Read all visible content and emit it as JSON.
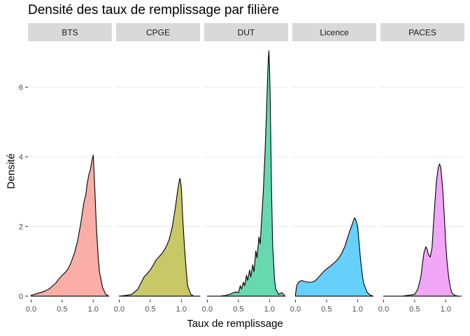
{
  "chart_data": {
    "type": "area",
    "title": "Densité des taux de remplissage par filière",
    "xlabel": "Taux de remplissage",
    "ylabel": "Densité",
    "xlim": [
      -0.05,
      1.3
    ],
    "ylim": [
      -0.1,
      7.3
    ],
    "x_ticks": [
      0.0,
      0.5,
      1.0
    ],
    "x_tick_labels": [
      "0.0",
      "0.5",
      "1.0"
    ],
    "y_ticks": [
      0,
      2,
      4,
      6
    ],
    "y_tick_labels": [
      "0",
      "2",
      "4",
      "6"
    ],
    "grid": true,
    "legend": "none",
    "facets": [
      "BTS",
      "CPGE",
      "DUT",
      "Licence",
      "PACES"
    ],
    "series": [
      {
        "name": "BTS",
        "color": "#F8766D",
        "x": [
          0.0,
          0.05,
          0.1,
          0.15,
          0.2,
          0.25,
          0.3,
          0.35,
          0.4,
          0.45,
          0.5,
          0.55,
          0.6,
          0.65,
          0.7,
          0.75,
          0.8,
          0.85,
          0.88,
          0.9,
          0.93,
          0.95,
          0.98,
          1.0,
          1.02,
          1.05,
          1.08,
          1.1,
          1.15,
          1.2,
          1.25
        ],
        "values": [
          0.02,
          0.05,
          0.08,
          0.1,
          0.13,
          0.17,
          0.22,
          0.3,
          0.38,
          0.5,
          0.6,
          0.68,
          0.8,
          1.0,
          1.25,
          1.6,
          2.1,
          2.7,
          2.9,
          3.2,
          3.5,
          3.6,
          3.9,
          4.05,
          3.3,
          2.0,
          1.1,
          0.7,
          0.25,
          0.05,
          0.0
        ]
      },
      {
        "name": "CPGE",
        "color": "#A3A500",
        "x": [
          0.0,
          0.1,
          0.2,
          0.3,
          0.35,
          0.4,
          0.45,
          0.5,
          0.55,
          0.6,
          0.65,
          0.7,
          0.75,
          0.8,
          0.85,
          0.9,
          0.93,
          0.95,
          0.97,
          0.98,
          1.0,
          1.02,
          1.05,
          1.08,
          1.1,
          1.15,
          1.2,
          1.3
        ],
        "values": [
          0.0,
          0.02,
          0.05,
          0.2,
          0.38,
          0.55,
          0.65,
          0.75,
          0.9,
          1.05,
          1.15,
          1.25,
          1.4,
          1.6,
          1.95,
          2.5,
          2.9,
          3.15,
          3.35,
          3.38,
          3.1,
          2.3,
          1.4,
          0.7,
          0.3,
          0.05,
          0.0,
          0.0
        ]
      },
      {
        "name": "DUT",
        "color": "#00BF7D",
        "x": [
          0.0,
          0.2,
          0.3,
          0.35,
          0.4,
          0.45,
          0.5,
          0.53,
          0.55,
          0.58,
          0.6,
          0.63,
          0.65,
          0.68,
          0.7,
          0.73,
          0.75,
          0.78,
          0.8,
          0.83,
          0.85,
          0.88,
          0.9,
          0.93,
          0.95,
          0.97,
          0.98,
          0.99,
          1.0,
          1.01,
          1.02,
          1.03,
          1.05,
          1.08,
          1.1,
          1.15,
          1.2,
          1.25
        ],
        "values": [
          0.0,
          0.0,
          0.02,
          0.05,
          0.08,
          0.12,
          0.1,
          0.3,
          0.2,
          0.4,
          0.3,
          0.6,
          0.45,
          0.75,
          0.55,
          0.9,
          0.7,
          1.3,
          1.1,
          1.7,
          1.5,
          2.4,
          3.0,
          4.2,
          5.2,
          6.3,
          6.8,
          7.05,
          6.6,
          5.8,
          4.6,
          3.3,
          1.5,
          0.5,
          0.2,
          0.05,
          0.1,
          0.0
        ]
      },
      {
        "name": "Licence",
        "color": "#00B0F6",
        "x": [
          0.0,
          0.02,
          0.05,
          0.1,
          0.15,
          0.2,
          0.25,
          0.3,
          0.35,
          0.4,
          0.45,
          0.5,
          0.55,
          0.6,
          0.65,
          0.7,
          0.75,
          0.8,
          0.85,
          0.9,
          0.93,
          0.95,
          0.97,
          1.0,
          1.02,
          1.05,
          1.08,
          1.1,
          1.15,
          1.2,
          1.25
        ],
        "values": [
          0.05,
          0.3,
          0.4,
          0.45,
          0.42,
          0.4,
          0.4,
          0.42,
          0.5,
          0.6,
          0.7,
          0.78,
          0.85,
          0.92,
          1.0,
          1.1,
          1.25,
          1.45,
          1.75,
          2.0,
          2.15,
          2.25,
          2.2,
          2.0,
          1.6,
          1.0,
          0.55,
          0.35,
          0.12,
          0.03,
          0.0
        ]
      },
      {
        "name": "PACES",
        "color": "#E76BF3",
        "x": [
          0.0,
          0.3,
          0.5,
          0.55,
          0.6,
          0.63,
          0.65,
          0.68,
          0.7,
          0.72,
          0.75,
          0.78,
          0.8,
          0.83,
          0.85,
          0.88,
          0.9,
          0.92,
          0.95,
          0.98,
          1.0,
          1.02,
          1.05,
          1.08,
          1.1,
          1.15,
          1.2,
          1.25
        ],
        "values": [
          0.0,
          0.0,
          0.05,
          0.2,
          0.55,
          1.0,
          1.25,
          1.42,
          1.35,
          1.2,
          1.12,
          1.4,
          2.0,
          2.8,
          3.3,
          3.7,
          3.8,
          3.7,
          3.1,
          2.2,
          1.5,
          1.0,
          0.5,
          0.2,
          0.08,
          0.02,
          0.0,
          0.0
        ]
      }
    ]
  }
}
